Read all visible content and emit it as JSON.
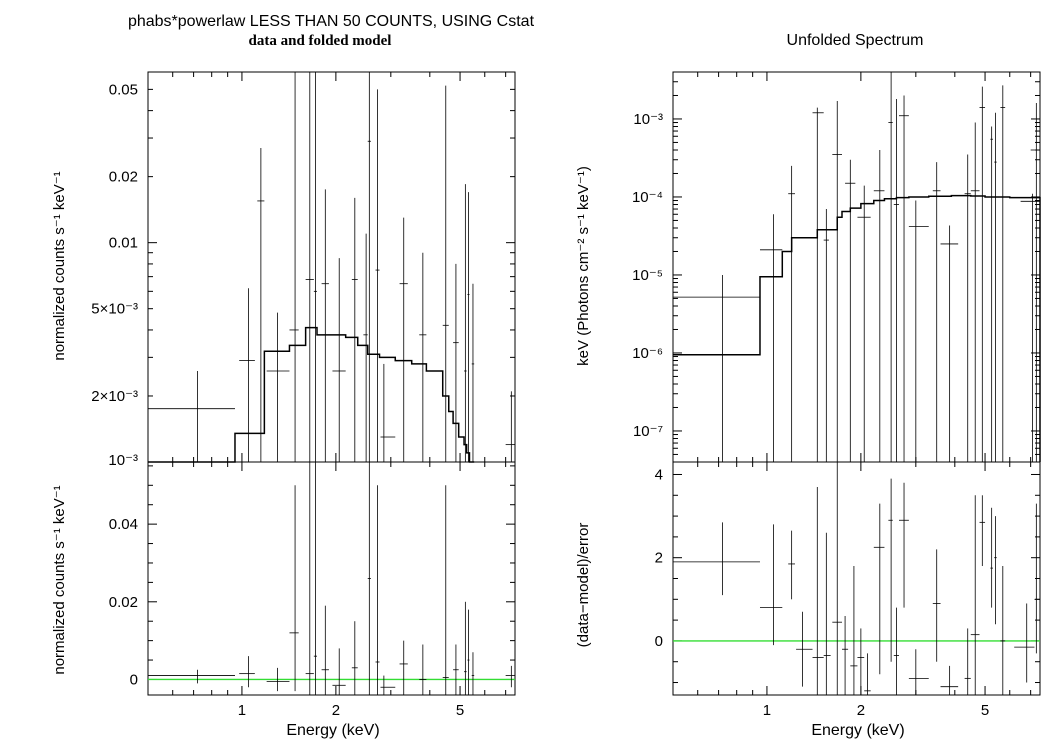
{
  "chart_data": [
    {
      "type": "scatter",
      "panel": "folded-top",
      "title": "phabs*powerlaw LESS THAN 50 COUNTS, USING Cstat",
      "subtitle": "data and folded model",
      "ylabel": "normalized counts s⁻¹ keV⁻¹",
      "xscale": "log",
      "yscale": "log",
      "xlim": [
        0.5,
        7.5
      ],
      "ylim": [
        0.001,
        0.06
      ],
      "yticks": [
        {
          "v": 0.05,
          "l": "0.05"
        },
        {
          "v": 0.02,
          "l": "0.02"
        },
        {
          "v": 0.01,
          "l": "0.01"
        },
        {
          "v": 0.005,
          "l": "5×10⁻³"
        },
        {
          "v": 0.002,
          "l": "2×10⁻³"
        },
        {
          "v": 0.001,
          "l": "10⁻³"
        }
      ],
      "points": [
        {
          "x": 0.72,
          "xlo": 0.5,
          "xhi": 0.95,
          "y": 0.00175,
          "ylo": 0.001,
          "yhi": 0.0026
        },
        {
          "x": 1.05,
          "xlo": 0.98,
          "xhi": 1.1,
          "y": 0.0029,
          "ylo": 0.001,
          "yhi": 0.0062
        },
        {
          "x": 1.15,
          "xlo": 1.12,
          "xhi": 1.18,
          "y": 0.0155,
          "ylo": 0.001,
          "yhi": 0.027
        },
        {
          "x": 1.3,
          "xlo": 1.2,
          "xhi": 1.42,
          "y": 0.0026,
          "ylo": 0.001,
          "yhi": 0.0048
        },
        {
          "x": 1.48,
          "xlo": 1.42,
          "xhi": 1.52,
          "y": 0.004,
          "ylo": 0.001,
          "yhi": 0.06
        },
        {
          "x": 1.65,
          "xlo": 1.6,
          "xhi": 1.7,
          "y": 0.0068,
          "ylo": 0.001,
          "yhi": 0.06
        },
        {
          "x": 1.72,
          "xlo": 1.7,
          "xhi": 1.74,
          "y": 0.006,
          "ylo": 0.001,
          "yhi": 0.06
        },
        {
          "x": 1.85,
          "xlo": 1.8,
          "xhi": 1.9,
          "y": 0.0065,
          "ylo": 0.001,
          "yhi": 0.0175
        },
        {
          "x": 2.05,
          "xlo": 1.95,
          "xhi": 2.15,
          "y": 0.0026,
          "ylo": 0.001,
          "yhi": 0.0085
        },
        {
          "x": 2.3,
          "xlo": 2.25,
          "xhi": 2.35,
          "y": 0.0068,
          "ylo": 0.001,
          "yhi": 0.016
        },
        {
          "x": 2.5,
          "xlo": 2.45,
          "xhi": 2.53,
          "y": 0.0038,
          "ylo": 0.001,
          "yhi": 0.011
        },
        {
          "x": 2.56,
          "xlo": 2.53,
          "xhi": 2.59,
          "y": 0.029,
          "ylo": 0.001,
          "yhi": 0.06
        },
        {
          "x": 2.72,
          "xlo": 2.68,
          "xhi": 2.76,
          "y": 0.0075,
          "ylo": 0.001,
          "yhi": 0.05
        },
        {
          "x": 2.85,
          "xlo": 2.78,
          "xhi": 3.1,
          "y": 0.0013,
          "ylo": 0.001,
          "yhi": 0.0028
        },
        {
          "x": 3.3,
          "xlo": 3.2,
          "xhi": 3.4,
          "y": 0.0065,
          "ylo": 0.001,
          "yhi": 0.013
        },
        {
          "x": 3.8,
          "xlo": 3.7,
          "xhi": 3.9,
          "y": 0.0038,
          "ylo": 0.001,
          "yhi": 0.009
        },
        {
          "x": 4.5,
          "xlo": 4.4,
          "xhi": 4.6,
          "y": 0.0042,
          "ylo": 0.001,
          "yhi": 0.052
        },
        {
          "x": 4.85,
          "xlo": 4.75,
          "xhi": 4.95,
          "y": 0.0035,
          "ylo": 0.001,
          "yhi": 0.008
        },
        {
          "x": 5.2,
          "xlo": 5.15,
          "xhi": 5.25,
          "y": 0.0026,
          "ylo": 0.001,
          "yhi": 0.0185
        },
        {
          "x": 5.32,
          "xlo": 5.28,
          "xhi": 5.36,
          "y": 0.0058,
          "ylo": 0.001,
          "yhi": 0.017
        },
        {
          "x": 5.5,
          "xlo": 5.45,
          "xhi": 5.55,
          "y": 0.0028,
          "ylo": 0.001,
          "yhi": 0.0065
        },
        {
          "x": 7.3,
          "xlo": 7.0,
          "xhi": 7.5,
          "y": 0.0012,
          "ylo": 0.001,
          "yhi": 0.0021
        }
      ],
      "model": {
        "edges": [
          0.5,
          0.95,
          1.1,
          1.18,
          1.42,
          1.6,
          1.74,
          2.15,
          2.35,
          2.53,
          2.76,
          3.1,
          3.5,
          3.9,
          4.4,
          4.6,
          4.75,
          4.95,
          5.15,
          5.25,
          5.36,
          5.55
        ],
        "values": [
          0.0005,
          0.00135,
          0.00135,
          0.0032,
          0.0034,
          0.0041,
          0.0038,
          0.0037,
          0.0034,
          0.0031,
          0.003,
          0.0029,
          0.0028,
          0.0026,
          0.002,
          0.0017,
          0.0015,
          0.0013,
          0.0012,
          0.0011,
          0.001
        ]
      }
    },
    {
      "type": "scatter",
      "panel": "folded-residuals",
      "ylabel": "normalized counts s⁻¹ keV⁻¹",
      "xlabel": "Energy (keV)",
      "xscale": "log",
      "yscale": "linear",
      "xlim": [
        0.5,
        7.5
      ],
      "ylim": [
        -0.004,
        0.056
      ],
      "yticks": [
        {
          "v": 0.04,
          "l": "0.04"
        },
        {
          "v": 0.02,
          "l": "0.02"
        },
        {
          "v": 0,
          "l": "0"
        }
      ],
      "xticks": [
        {
          "v": 1,
          "l": "1"
        },
        {
          "v": 2,
          "l": "2"
        },
        {
          "v": 5,
          "l": "5"
        }
      ],
      "zero_line": 0,
      "points": [
        {
          "x": 0.72,
          "xlo": 0.5,
          "xhi": 0.95,
          "y": 0.001,
          "ylo": -0.001,
          "yhi": 0.0025
        },
        {
          "x": 1.05,
          "xlo": 0.98,
          "xhi": 1.1,
          "y": 0.0015,
          "ylo": -0.002,
          "yhi": 0.006
        },
        {
          "x": 1.3,
          "xlo": 1.2,
          "xhi": 1.42,
          "y": -0.0005,
          "ylo": -0.003,
          "yhi": 0.003
        },
        {
          "x": 1.48,
          "xlo": 1.42,
          "xhi": 1.52,
          "y": 0.012,
          "ylo": -0.003,
          "yhi": 0.05
        },
        {
          "x": 1.65,
          "xlo": 1.6,
          "xhi": 1.7,
          "y": 0.0015,
          "ylo": -0.004,
          "yhi": 0.056
        },
        {
          "x": 1.72,
          "xlo": 1.7,
          "xhi": 1.74,
          "y": 0.006,
          "ylo": -0.004,
          "yhi": 0.056
        },
        {
          "x": 1.85,
          "xlo": 1.8,
          "xhi": 1.9,
          "y": 0.0025,
          "ylo": -0.004,
          "yhi": 0.019
        },
        {
          "x": 2.05,
          "xlo": 1.95,
          "xhi": 2.15,
          "y": -0.0015,
          "ylo": -0.004,
          "yhi": 0.008
        },
        {
          "x": 2.3,
          "xlo": 2.25,
          "xhi": 2.35,
          "y": 0.003,
          "ylo": -0.004,
          "yhi": 0.015
        },
        {
          "x": 2.56,
          "xlo": 2.53,
          "xhi": 2.59,
          "y": 0.026,
          "ylo": -0.004,
          "yhi": 0.056
        },
        {
          "x": 2.72,
          "xlo": 2.68,
          "xhi": 2.76,
          "y": 0.0045,
          "ylo": -0.004,
          "yhi": 0.05
        },
        {
          "x": 2.85,
          "xlo": 2.78,
          "xhi": 3.1,
          "y": -0.002,
          "ylo": -0.004,
          "yhi": 0.001
        },
        {
          "x": 3.3,
          "xlo": 3.2,
          "xhi": 3.4,
          "y": 0.004,
          "ylo": -0.004,
          "yhi": 0.01
        },
        {
          "x": 3.8,
          "xlo": 3.7,
          "xhi": 3.9,
          "y": 0.0,
          "ylo": -0.004,
          "yhi": 0.009
        },
        {
          "x": 4.5,
          "xlo": 4.4,
          "xhi": 4.6,
          "y": 0.0005,
          "ylo": -0.004,
          "yhi": 0.05
        },
        {
          "x": 4.85,
          "xlo": 4.75,
          "xhi": 4.95,
          "y": 0.0025,
          "ylo": -0.004,
          "yhi": 0.009
        },
        {
          "x": 5.2,
          "xlo": 5.15,
          "xhi": 5.25,
          "y": 0.002,
          "ylo": -0.004,
          "yhi": 0.02
        },
        {
          "x": 5.32,
          "xlo": 5.28,
          "xhi": 5.36,
          "y": 0.005,
          "ylo": -0.004,
          "yhi": 0.018
        },
        {
          "x": 5.5,
          "xlo": 5.45,
          "xhi": 5.55,
          "y": 0.001,
          "ylo": -0.004,
          "yhi": 0.007
        },
        {
          "x": 7.3,
          "xlo": 7.0,
          "xhi": 7.5,
          "y": 0.001,
          "ylo": -0.002,
          "yhi": 0.0035
        }
      ]
    },
    {
      "type": "scatter",
      "panel": "unfolded-top",
      "title": "Unfolded Spectrum",
      "ylabel": "keV (Photons cm⁻² s⁻¹ keV⁻¹)",
      "xscale": "log",
      "yscale": "log",
      "xlim": [
        0.5,
        7.5
      ],
      "ylim": [
        4e-08,
        0.004
      ],
      "yticks": [
        {
          "v": 0.001,
          "l": "10⁻³"
        },
        {
          "v": 0.0001,
          "l": "10⁻⁴"
        },
        {
          "v": 1e-05,
          "l": "10⁻⁵"
        },
        {
          "v": 1e-06,
          "l": "10⁻⁶"
        },
        {
          "v": 1e-07,
          "l": "10⁻⁷"
        }
      ],
      "points": [
        {
          "x": 0.72,
          "xlo": 0.5,
          "xhi": 0.95,
          "y": 5.2e-06,
          "ylo": 4e-08,
          "yhi": 1e-05
        },
        {
          "x": 1.05,
          "xlo": 0.95,
          "xhi": 1.12,
          "y": 2.1e-05,
          "ylo": 4e-08,
          "yhi": 6e-05
        },
        {
          "x": 1.2,
          "xlo": 1.17,
          "xhi": 1.23,
          "y": 0.00011,
          "ylo": 4e-08,
          "yhi": 0.00025
        },
        {
          "x": 1.45,
          "xlo": 1.4,
          "xhi": 1.52,
          "y": 0.0012,
          "ylo": 4e-08,
          "yhi": 0.0014
        },
        {
          "x": 1.55,
          "xlo": 1.52,
          "xhi": 1.58,
          "y": 2.8e-05,
          "ylo": 4e-08,
          "yhi": 7e-05
        },
        {
          "x": 1.68,
          "xlo": 1.62,
          "xhi": 1.74,
          "y": 0.00035,
          "ylo": 4e-08,
          "yhi": 0.0017
        },
        {
          "x": 1.85,
          "xlo": 1.78,
          "xhi": 1.92,
          "y": 0.00015,
          "ylo": 4e-08,
          "yhi": 0.0003
        },
        {
          "x": 2.05,
          "xlo": 1.95,
          "xhi": 2.15,
          "y": 5.5e-05,
          "ylo": 4e-08,
          "yhi": 0.00014
        },
        {
          "x": 2.3,
          "xlo": 2.2,
          "xhi": 2.38,
          "y": 0.00012,
          "ylo": 4e-08,
          "yhi": 0.0004
        },
        {
          "x": 2.5,
          "xlo": 2.45,
          "xhi": 2.53,
          "y": 0.0009,
          "ylo": 4e-08,
          "yhi": 0.004
        },
        {
          "x": 2.6,
          "xlo": 2.55,
          "xhi": 2.65,
          "y": 8e-05,
          "ylo": 4e-08,
          "yhi": 0.0018
        },
        {
          "x": 2.75,
          "xlo": 2.65,
          "xhi": 2.85,
          "y": 0.0011,
          "ylo": 4e-08,
          "yhi": 0.002
        },
        {
          "x": 3.0,
          "xlo": 2.85,
          "xhi": 3.3,
          "y": 4.2e-05,
          "ylo": 4e-08,
          "yhi": 9e-05
        },
        {
          "x": 3.5,
          "xlo": 3.4,
          "xhi": 3.6,
          "y": 0.00012,
          "ylo": 4e-08,
          "yhi": 0.00028
        },
        {
          "x": 3.85,
          "xlo": 3.6,
          "xhi": 4.1,
          "y": 2.5e-05,
          "ylo": 4e-08,
          "yhi": 4.3e-05
        },
        {
          "x": 4.4,
          "xlo": 4.3,
          "xhi": 4.5,
          "y": 0.00011,
          "ylo": 4e-08,
          "yhi": 0.00035
        },
        {
          "x": 4.65,
          "xlo": 4.5,
          "xhi": 4.8,
          "y": 0.00012,
          "ylo": 4e-08,
          "yhi": 0.0009
        },
        {
          "x": 4.9,
          "xlo": 4.8,
          "xhi": 5.0,
          "y": 0.0014,
          "ylo": 4e-08,
          "yhi": 0.0026
        },
        {
          "x": 5.25,
          "xlo": 5.2,
          "xhi": 5.3,
          "y": 0.00055,
          "ylo": 4e-08,
          "yhi": 0.0008
        },
        {
          "x": 5.4,
          "xlo": 5.35,
          "xhi": 5.45,
          "y": 0.00028,
          "ylo": 4e-08,
          "yhi": 0.0012
        },
        {
          "x": 5.7,
          "xlo": 5.6,
          "xhi": 5.8,
          "y": 0.0014,
          "ylo": 4e-08,
          "yhi": 0.0027
        },
        {
          "x": 7.3,
          "xlo": 7.0,
          "xhi": 7.5,
          "y": 0.0004,
          "ylo": 4e-08,
          "yhi": 0.0016
        },
        {
          "x": 7.1,
          "xlo": 6.5,
          "xhi": 7.5,
          "y": 8.8e-05,
          "ylo": 4e-08,
          "yhi": 0.00011
        }
      ],
      "model": {
        "edges": [
          0.5,
          0.95,
          1.12,
          1.2,
          1.45,
          1.68,
          1.74,
          1.85,
          2.0,
          2.2,
          2.38,
          2.6,
          2.85,
          3.3,
          3.9,
          4.5,
          5.0,
          6.0,
          7.5
        ],
        "values": [
          9.5e-07,
          9.5e-06,
          2e-05,
          3e-05,
          3.8e-05,
          5.5e-05,
          6.5e-05,
          7.2e-05,
          8.2e-05,
          9e-05,
          9.5e-05,
          9.8e-05,
          0.0001,
          0.000102,
          0.000104,
          0.000103,
          0.0001,
          9.8e-05
        ]
      }
    },
    {
      "type": "scatter",
      "panel": "unfolded-residuals",
      "ylabel": "(data−model)/error",
      "xlabel": "Energy (keV)",
      "xscale": "log",
      "yscale": "linear",
      "xlim": [
        0.5,
        7.5
      ],
      "ylim": [
        -1.3,
        4.3
      ],
      "yticks": [
        {
          "v": 4,
          "l": "4"
        },
        {
          "v": 2,
          "l": "2"
        },
        {
          "v": 0,
          "l": "0"
        }
      ],
      "xticks": [
        {
          "v": 1,
          "l": "1"
        },
        {
          "v": 2,
          "l": "2"
        },
        {
          "v": 5,
          "l": "5"
        }
      ],
      "zero_line": 0,
      "points": [
        {
          "x": 0.72,
          "xlo": 0.5,
          "xhi": 0.95,
          "y": 1.9,
          "ylo": 1.1,
          "yhi": 2.85
        },
        {
          "x": 1.05,
          "xlo": 0.95,
          "xhi": 1.12,
          "y": 0.8,
          "ylo": -0.1,
          "yhi": 2.8
        },
        {
          "x": 1.2,
          "xlo": 1.17,
          "xhi": 1.23,
          "y": 1.85,
          "ylo": 1.0,
          "yhi": 2.65
        },
        {
          "x": 1.3,
          "xlo": 1.24,
          "xhi": 1.4,
          "y": -0.2,
          "ylo": -1.1,
          "yhi": 0.7
        },
        {
          "x": 1.45,
          "xlo": 1.4,
          "xhi": 1.52,
          "y": -0.4,
          "ylo": -1.3,
          "yhi": 3.7
        },
        {
          "x": 1.55,
          "xlo": 1.52,
          "xhi": 1.6,
          "y": -0.35,
          "ylo": -1.3,
          "yhi": 2.6
        },
        {
          "x": 1.68,
          "xlo": 1.62,
          "xhi": 1.74,
          "y": 0.45,
          "ylo": -1.3,
          "yhi": 4.3
        },
        {
          "x": 1.78,
          "xlo": 1.74,
          "xhi": 1.82,
          "y": -0.2,
          "ylo": -1.3,
          "yhi": 0.6
        },
        {
          "x": 1.9,
          "xlo": 1.85,
          "xhi": 1.95,
          "y": -0.6,
          "ylo": -1.3,
          "yhi": 1.8
        },
        {
          "x": 2.0,
          "xlo": 1.95,
          "xhi": 2.05,
          "y": -0.4,
          "ylo": -1.3,
          "yhi": 0.3
        },
        {
          "x": 2.1,
          "xlo": 2.05,
          "xhi": 2.15,
          "y": -1.2,
          "ylo": -1.3,
          "yhi": -0.3
        },
        {
          "x": 2.3,
          "xlo": 2.2,
          "xhi": 2.38,
          "y": 2.25,
          "ylo": -0.8,
          "yhi": 3.3
        },
        {
          "x": 2.5,
          "xlo": 2.45,
          "xhi": 2.53,
          "y": 2.9,
          "ylo": -0.5,
          "yhi": 3.9
        },
        {
          "x": 2.6,
          "xlo": 2.55,
          "xhi": 2.65,
          "y": -0.35,
          "ylo": -1.3,
          "yhi": 0.8
        },
        {
          "x": 2.75,
          "xlo": 2.65,
          "xhi": 2.85,
          "y": 2.9,
          "ylo": 0.8,
          "yhi": 3.8
        },
        {
          "x": 3.0,
          "xlo": 2.85,
          "xhi": 3.3,
          "y": -0.9,
          "ylo": -1.3,
          "yhi": -0.2
        },
        {
          "x": 3.5,
          "xlo": 3.4,
          "xhi": 3.6,
          "y": 0.9,
          "ylo": -0.5,
          "yhi": 2.2
        },
        {
          "x": 3.85,
          "xlo": 3.6,
          "xhi": 4.1,
          "y": -1.1,
          "ylo": -1.3,
          "yhi": -0.6
        },
        {
          "x": 4.4,
          "xlo": 4.3,
          "xhi": 4.5,
          "y": -0.9,
          "ylo": -1.3,
          "yhi": 0.3
        },
        {
          "x": 4.65,
          "xlo": 4.5,
          "xhi": 4.8,
          "y": 0.15,
          "ylo": -1.3,
          "yhi": 3.5
        },
        {
          "x": 4.9,
          "xlo": 4.8,
          "xhi": 5.0,
          "y": 2.85,
          "ylo": 1.8,
          "yhi": 3.5
        },
        {
          "x": 5.25,
          "xlo": 5.2,
          "xhi": 5.3,
          "y": 1.75,
          "ylo": 0.8,
          "yhi": 3.2
        },
        {
          "x": 5.4,
          "xlo": 5.35,
          "xhi": 5.45,
          "y": 2.0,
          "ylo": 0.4,
          "yhi": 3.0
        },
        {
          "x": 5.7,
          "xlo": 5.6,
          "xhi": 5.8,
          "y": 0.0,
          "ylo": -1.3,
          "yhi": 1.8
        },
        {
          "x": 6.8,
          "xlo": 6.2,
          "xhi": 7.2,
          "y": -0.15,
          "ylo": -1.0,
          "yhi": 0.9
        },
        {
          "x": 7.3,
          "xlo": 7.2,
          "xhi": 7.5,
          "y": 1.0,
          "ylo": -0.3,
          "yhi": 3.3
        }
      ]
    }
  ]
}
